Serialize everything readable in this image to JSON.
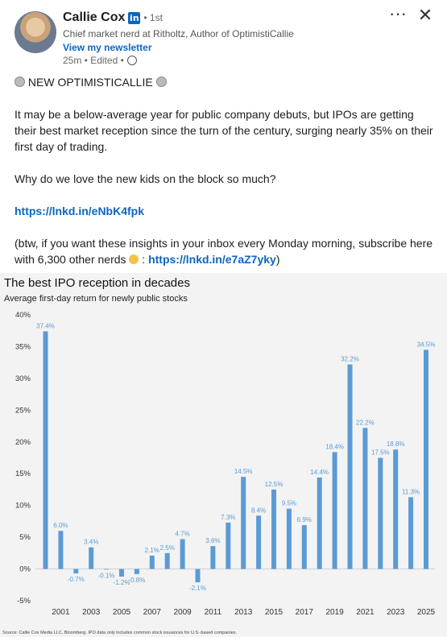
{
  "post": {
    "author_name": "Callie Cox",
    "degree": "• 1st",
    "headline": "Chief market nerd at Ritholtz, Author of OptimistiCallie",
    "newsletter_link": "View my newsletter",
    "time": "25m • Edited •",
    "heading_line": "NEW OPTIMISTICALLIE",
    "paragraph1": "It may be a below-average year for public company debuts, but IPOs are getting their best market reception since the turn of the century, surging nearly 35% on their first day of trading.",
    "paragraph2": "Why do we love the new kids on the block so much?",
    "link1": "https://lnkd.in/eNbK4fpk",
    "paragraph3_start": "(btw, if you want these insights in your inbox every Monday morning, subscribe here with 6,300 other nerds",
    "paragraph3_colon": " : ",
    "link2": "https://lnkd.in/e7aZ7yky",
    "paragraph3_end": ")",
    "icons": {
      "linkedin_badge": "in",
      "more": "more-horizontal-icon",
      "close": "close-icon",
      "globe": "globe-icon",
      "bomb": "bomb-emoji-icon",
      "nerd": "nerd-face-emoji-icon"
    }
  },
  "chart_data": {
    "type": "bar",
    "title": "The best IPO reception in decades",
    "subtitle": "Average first-day return for newly public stocks",
    "source": "Source: Callie Cox Media LLC, Bloomberg. IPO data only includes common stock issuances for U.S.-based companies.",
    "bar_color": "#5b9bd5",
    "ylim": [
      -5,
      40
    ],
    "yticks": [
      "40%",
      "35%",
      "30%",
      "25%",
      "20%",
      "15%",
      "10%",
      "5%",
      "0%",
      "-5%"
    ],
    "ytick_values": [
      40,
      35,
      30,
      25,
      20,
      15,
      10,
      5,
      0,
      -5
    ],
    "x_tick_labels": [
      "2001",
      "2003",
      "2005",
      "2007",
      "2009",
      "2011",
      "2013",
      "2015",
      "2017",
      "2019",
      "2021",
      "2023",
      "2025"
    ],
    "x_tick_years": [
      2001,
      2003,
      2005,
      2007,
      2009,
      2011,
      2013,
      2015,
      2017,
      2019,
      2021,
      2023,
      2025
    ],
    "x": [
      2000,
      2001,
      2002,
      2003,
      2004,
      2005,
      2006,
      2007,
      2008,
      2009,
      2010,
      2011,
      2012,
      2013,
      2014,
      2015,
      2016,
      2017,
      2018,
      2019,
      2020,
      2021,
      2022,
      2023,
      2024,
      2025
    ],
    "values": [
      37.4,
      6.0,
      -0.7,
      3.4,
      -0.1,
      -1.2,
      -0.8,
      2.1,
      2.5,
      4.7,
      -2.1,
      3.6,
      7.3,
      14.5,
      8.4,
      12.5,
      9.5,
      6.9,
      14.4,
      18.4,
      32.2,
      22.2,
      17.5,
      18.8,
      11.3,
      34.5
    ],
    "labels": [
      "37.4%",
      "6.0%",
      "-0.7%",
      "3.4%",
      "-0.1%",
      "-1.2%",
      "-0.8%",
      "2.1%",
      "2.5%",
      "4.7%",
      "-2.1%",
      "3.6%",
      "7.3%",
      "14.5%",
      "8.4%",
      "12.5%",
      "9.5%",
      "6.9%",
      "14.4%",
      "18.4%",
      "32.2%",
      "22.2%",
      "17.5%",
      "18.8%",
      "11.3%",
      "34.5%"
    ]
  }
}
